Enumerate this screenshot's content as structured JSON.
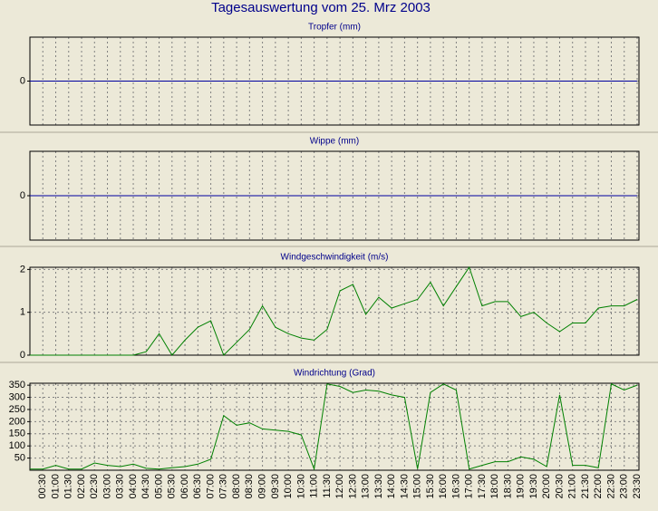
{
  "title": "Tagesauswertung vom 25. Mrz 2003",
  "chart_data": [
    {
      "type": "line",
      "title": "Tropfer (mm)",
      "color": "#0000a0",
      "values": [
        0,
        0,
        0,
        0,
        0,
        0,
        0,
        0,
        0,
        0,
        0,
        0,
        0,
        0,
        0,
        0,
        0,
        0,
        0,
        0,
        0,
        0,
        0,
        0,
        0,
        0,
        0,
        0,
        0,
        0,
        0,
        0,
        0,
        0,
        0,
        0,
        0,
        0,
        0,
        0,
        0,
        0,
        0,
        0,
        0,
        0,
        0,
        0
      ],
      "ylim": [
        -1,
        1
      ],
      "yticks": [
        0
      ],
      "grid": true
    },
    {
      "type": "line",
      "title": "Wippe (mm)",
      "color": "#0000a0",
      "values": [
        0,
        0,
        0,
        0,
        0,
        0,
        0,
        0,
        0,
        0,
        0,
        0,
        0,
        0,
        0,
        0,
        0,
        0,
        0,
        0,
        0,
        0,
        0,
        0,
        0,
        0,
        0,
        0,
        0,
        0,
        0,
        0,
        0,
        0,
        0,
        0,
        0,
        0,
        0,
        0,
        0,
        0,
        0,
        0,
        0,
        0,
        0,
        0
      ],
      "ylim": [
        -1,
        1
      ],
      "yticks": [
        0
      ],
      "grid": true
    },
    {
      "type": "line",
      "title": "Windgeschwindigkeit (m/s)",
      "color": "#008000",
      "values": [
        0,
        0,
        0,
        0,
        0,
        0,
        0,
        0,
        0,
        0.08,
        0.5,
        0,
        0.35,
        0.65,
        0.8,
        0,
        0.3,
        0.6,
        1.15,
        0.65,
        0.5,
        0.4,
        0.35,
        0.6,
        1.5,
        1.65,
        0.95,
        1.35,
        1.1,
        1.2,
        1.3,
        1.7,
        1.15,
        1.6,
        2.05,
        1.15,
        1.25,
        1.25,
        0.9,
        1.0,
        0.75,
        0.55,
        0.75,
        0.75,
        1.1,
        1.15,
        1.15,
        1.3
      ],
      "ylim": [
        0,
        2.05
      ],
      "yticks": [
        0,
        1,
        2
      ],
      "grid": true
    },
    {
      "type": "line",
      "title": "Windrichtung (Grad)",
      "color": "#008000",
      "categories": [
        null,
        "00:30",
        "01:00",
        "01:30",
        "02:00",
        "02:30",
        "03:00",
        "03:30",
        "04:00",
        "04:30",
        "05:00",
        "05:30",
        "06:00",
        "06:30",
        "07:00",
        "07:30",
        "08:00",
        "08:30",
        "09:00",
        "09:30",
        "10:00",
        "10:30",
        "11:00",
        "11:30",
        "12:00",
        "12:30",
        "13:00",
        "13:30",
        "14:00",
        "14:30",
        "15:00",
        "15:30",
        "16:00",
        "16:30",
        "17:00",
        "17:30",
        "18:00",
        "18:30",
        "19:00",
        "19:30",
        "20:00",
        "20:30",
        "21:00",
        "21:30",
        "22:00",
        "22:30",
        "23:00",
        "23:30"
      ],
      "values": [
        5,
        5,
        20,
        5,
        5,
        30,
        20,
        15,
        25,
        8,
        5,
        10,
        15,
        25,
        45,
        225,
        185,
        195,
        170,
        165,
        160,
        145,
        5,
        355,
        345,
        320,
        330,
        325,
        310,
        300,
        5,
        320,
        355,
        330,
        5,
        20,
        35,
        35,
        55,
        45,
        15,
        310,
        20,
        20,
        10,
        355,
        330,
        350
      ],
      "ylim": [
        0,
        358
      ],
      "yticks": [
        50,
        100,
        150,
        200,
        250,
        300,
        350
      ],
      "grid": true
    }
  ]
}
